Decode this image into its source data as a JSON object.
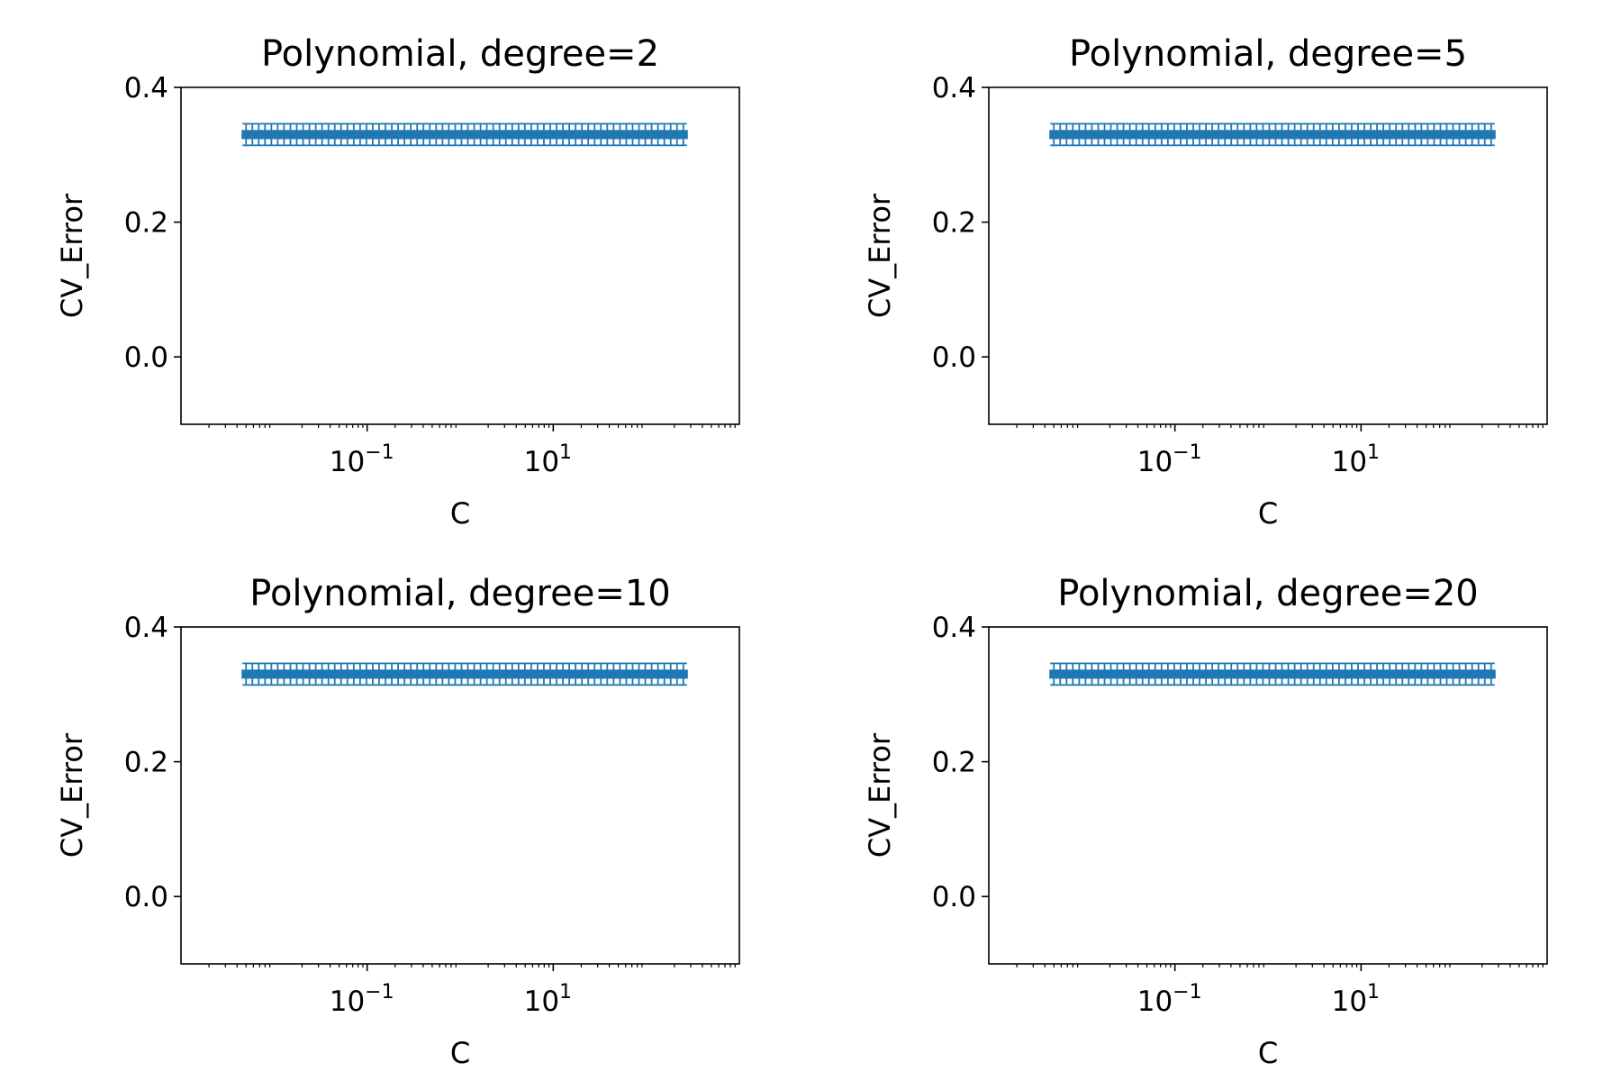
{
  "chart_data": [
    {
      "type": "errorbar",
      "title": "Polynomial, degree=2",
      "xlabel": "C",
      "ylabel": "CV_Error",
      "xscale": "log",
      "xlim": [
        0.001,
        1000
      ],
      "ylim": [
        -0.1,
        0.4
      ],
      "yticks": [
        "0.4",
        "0.2",
        "0.0"
      ],
      "xticks": [
        {
          "base": "10",
          "exp": "−1",
          "value": 0.1
        },
        {
          "base": "10",
          "exp": "1",
          "value": 10
        }
      ],
      "color": "#1f77b4",
      "x": [
        0.005,
        0.00585,
        0.00684,
        0.008,
        0.00936,
        0.01095,
        0.0128,
        0.01498,
        0.01752,
        0.0205,
        0.02397,
        0.02804,
        0.0328,
        0.03837,
        0.04489,
        0.0525,
        0.06142,
        0.07185,
        0.08404,
        0.09831,
        0.115,
        0.1345,
        0.1574,
        0.1841,
        0.2153,
        0.2519,
        0.2946,
        0.3447,
        0.4032,
        0.4716,
        0.5517,
        0.6454,
        0.755,
        0.8831,
        1.033,
        1.209,
        1.414,
        1.654,
        1.935,
        2.263,
        2.648,
        3.097,
        3.623,
        4.238,
        4.957,
        5.799,
        6.784,
        7.935,
        9.283,
        10.86,
        12.7,
        14.86,
        17.38,
        20.33,
        23.78,
        27.82,
        32.54,
        38.07,
        44.53,
        52.09,
        60.94,
        71.28,
        83.39,
        97.55,
        114.1,
        133.5,
        156.2,
        182.7,
        213.7,
        250.0
      ],
      "y": [
        0.33,
        0.33,
        0.33,
        0.33,
        0.33,
        0.33,
        0.33,
        0.33,
        0.33,
        0.33,
        0.33,
        0.33,
        0.33,
        0.33,
        0.33,
        0.33,
        0.33,
        0.33,
        0.33,
        0.33,
        0.33,
        0.33,
        0.33,
        0.33,
        0.33,
        0.33,
        0.33,
        0.33,
        0.33,
        0.33,
        0.33,
        0.33,
        0.33,
        0.33,
        0.33,
        0.33,
        0.33,
        0.33,
        0.33,
        0.33,
        0.33,
        0.33,
        0.33,
        0.33,
        0.33,
        0.33,
        0.33,
        0.33,
        0.33,
        0.33,
        0.33,
        0.33,
        0.33,
        0.33,
        0.33,
        0.33,
        0.33,
        0.33,
        0.33,
        0.33,
        0.33,
        0.33,
        0.33,
        0.33,
        0.33,
        0.33,
        0.33,
        0.33,
        0.33,
        0.33
      ],
      "yerr": [
        0.016,
        0.016,
        0.016,
        0.016,
        0.016,
        0.016,
        0.016,
        0.016,
        0.016,
        0.016,
        0.016,
        0.016,
        0.016,
        0.016,
        0.016,
        0.016,
        0.016,
        0.016,
        0.016,
        0.016,
        0.016,
        0.016,
        0.016,
        0.016,
        0.016,
        0.016,
        0.016,
        0.016,
        0.016,
        0.016,
        0.016,
        0.016,
        0.016,
        0.016,
        0.016,
        0.016,
        0.016,
        0.016,
        0.016,
        0.016,
        0.016,
        0.016,
        0.016,
        0.016,
        0.016,
        0.016,
        0.016,
        0.016,
        0.016,
        0.016,
        0.016,
        0.016,
        0.016,
        0.016,
        0.016,
        0.016,
        0.016,
        0.016,
        0.016,
        0.016,
        0.016,
        0.016,
        0.016,
        0.016,
        0.016,
        0.016,
        0.016,
        0.016,
        0.016,
        0.016
      ]
    },
    {
      "type": "errorbar",
      "title": "Polynomial, degree=5",
      "xlabel": "C",
      "ylabel": "CV_Error",
      "xscale": "log",
      "xlim": [
        0.001,
        1000
      ],
      "ylim": [
        -0.1,
        0.4
      ],
      "yticks": [
        "0.4",
        "0.2",
        "0.0"
      ],
      "xticks": [
        {
          "base": "10",
          "exp": "−1",
          "value": 0.1
        },
        {
          "base": "10",
          "exp": "1",
          "value": 10
        }
      ],
      "color": "#1f77b4",
      "x": [
        0.005,
        0.00585,
        0.00684,
        0.008,
        0.00936,
        0.01095,
        0.0128,
        0.01498,
        0.01752,
        0.0205,
        0.02397,
        0.02804,
        0.0328,
        0.03837,
        0.04489,
        0.0525,
        0.06142,
        0.07185,
        0.08404,
        0.09831,
        0.115,
        0.1345,
        0.1574,
        0.1841,
        0.2153,
        0.2519,
        0.2946,
        0.3447,
        0.4032,
        0.4716,
        0.5517,
        0.6454,
        0.755,
        0.8831,
        1.033,
        1.209,
        1.414,
        1.654,
        1.935,
        2.263,
        2.648,
        3.097,
        3.623,
        4.238,
        4.957,
        5.799,
        6.784,
        7.935,
        9.283,
        10.86,
        12.7,
        14.86,
        17.38,
        20.33,
        23.78,
        27.82,
        32.54,
        38.07,
        44.53,
        52.09,
        60.94,
        71.28,
        83.39,
        97.55,
        114.1,
        133.5,
        156.2,
        182.7,
        213.7,
        250.0
      ],
      "y": [
        0.33,
        0.33,
        0.33,
        0.33,
        0.33,
        0.33,
        0.33,
        0.33,
        0.33,
        0.33,
        0.33,
        0.33,
        0.33,
        0.33,
        0.33,
        0.33,
        0.33,
        0.33,
        0.33,
        0.33,
        0.33,
        0.33,
        0.33,
        0.33,
        0.33,
        0.33,
        0.33,
        0.33,
        0.33,
        0.33,
        0.33,
        0.33,
        0.33,
        0.33,
        0.33,
        0.33,
        0.33,
        0.33,
        0.33,
        0.33,
        0.33,
        0.33,
        0.33,
        0.33,
        0.33,
        0.33,
        0.33,
        0.33,
        0.33,
        0.33,
        0.33,
        0.33,
        0.33,
        0.33,
        0.33,
        0.33,
        0.33,
        0.33,
        0.33,
        0.33,
        0.33,
        0.33,
        0.33,
        0.33,
        0.33,
        0.33,
        0.33,
        0.33,
        0.33,
        0.33
      ],
      "yerr": [
        0.016,
        0.016,
        0.016,
        0.016,
        0.016,
        0.016,
        0.016,
        0.016,
        0.016,
        0.016,
        0.016,
        0.016,
        0.016,
        0.016,
        0.016,
        0.016,
        0.016,
        0.016,
        0.016,
        0.016,
        0.016,
        0.016,
        0.016,
        0.016,
        0.016,
        0.016,
        0.016,
        0.016,
        0.016,
        0.016,
        0.016,
        0.016,
        0.016,
        0.016,
        0.016,
        0.016,
        0.016,
        0.016,
        0.016,
        0.016,
        0.016,
        0.016,
        0.016,
        0.016,
        0.016,
        0.016,
        0.016,
        0.016,
        0.016,
        0.016,
        0.016,
        0.016,
        0.016,
        0.016,
        0.016,
        0.016,
        0.016,
        0.016,
        0.016,
        0.016,
        0.016,
        0.016,
        0.016,
        0.016,
        0.016,
        0.016,
        0.016,
        0.016,
        0.016,
        0.016
      ]
    },
    {
      "type": "errorbar",
      "title": "Polynomial, degree=10",
      "xlabel": "C",
      "ylabel": "CV_Error",
      "xscale": "log",
      "xlim": [
        0.001,
        1000
      ],
      "ylim": [
        -0.1,
        0.4
      ],
      "yticks": [
        "0.4",
        "0.2",
        "0.0"
      ],
      "xticks": [
        {
          "base": "10",
          "exp": "−1",
          "value": 0.1
        },
        {
          "base": "10",
          "exp": "1",
          "value": 10
        }
      ],
      "color": "#1f77b4",
      "x": [
        0.005,
        0.00585,
        0.00684,
        0.008,
        0.00936,
        0.01095,
        0.0128,
        0.01498,
        0.01752,
        0.0205,
        0.02397,
        0.02804,
        0.0328,
        0.03837,
        0.04489,
        0.0525,
        0.06142,
        0.07185,
        0.08404,
        0.09831,
        0.115,
        0.1345,
        0.1574,
        0.1841,
        0.2153,
        0.2519,
        0.2946,
        0.3447,
        0.4032,
        0.4716,
        0.5517,
        0.6454,
        0.755,
        0.8831,
        1.033,
        1.209,
        1.414,
        1.654,
        1.935,
        2.263,
        2.648,
        3.097,
        3.623,
        4.238,
        4.957,
        5.799,
        6.784,
        7.935,
        9.283,
        10.86,
        12.7,
        14.86,
        17.38,
        20.33,
        23.78,
        27.82,
        32.54,
        38.07,
        44.53,
        52.09,
        60.94,
        71.28,
        83.39,
        97.55,
        114.1,
        133.5,
        156.2,
        182.7,
        213.7,
        250.0
      ],
      "y": [
        0.33,
        0.33,
        0.33,
        0.33,
        0.33,
        0.33,
        0.33,
        0.33,
        0.33,
        0.33,
        0.33,
        0.33,
        0.33,
        0.33,
        0.33,
        0.33,
        0.33,
        0.33,
        0.33,
        0.33,
        0.33,
        0.33,
        0.33,
        0.33,
        0.33,
        0.33,
        0.33,
        0.33,
        0.33,
        0.33,
        0.33,
        0.33,
        0.33,
        0.33,
        0.33,
        0.33,
        0.33,
        0.33,
        0.33,
        0.33,
        0.33,
        0.33,
        0.33,
        0.33,
        0.33,
        0.33,
        0.33,
        0.33,
        0.33,
        0.33,
        0.33,
        0.33,
        0.33,
        0.33,
        0.33,
        0.33,
        0.33,
        0.33,
        0.33,
        0.33,
        0.33,
        0.33,
        0.33,
        0.33,
        0.33,
        0.33,
        0.33,
        0.33,
        0.33,
        0.33
      ],
      "yerr": [
        0.016,
        0.016,
        0.016,
        0.016,
        0.016,
        0.016,
        0.016,
        0.016,
        0.016,
        0.016,
        0.016,
        0.016,
        0.016,
        0.016,
        0.016,
        0.016,
        0.016,
        0.016,
        0.016,
        0.016,
        0.016,
        0.016,
        0.016,
        0.016,
        0.016,
        0.016,
        0.016,
        0.016,
        0.016,
        0.016,
        0.016,
        0.016,
        0.016,
        0.016,
        0.016,
        0.016,
        0.016,
        0.016,
        0.016,
        0.016,
        0.016,
        0.016,
        0.016,
        0.016,
        0.016,
        0.016,
        0.016,
        0.016,
        0.016,
        0.016,
        0.016,
        0.016,
        0.016,
        0.016,
        0.016,
        0.016,
        0.016,
        0.016,
        0.016,
        0.016,
        0.016,
        0.016,
        0.016,
        0.016,
        0.016,
        0.016,
        0.016,
        0.016,
        0.016,
        0.016
      ]
    },
    {
      "type": "errorbar",
      "title": "Polynomial, degree=20",
      "xlabel": "C",
      "ylabel": "CV_Error",
      "xscale": "log",
      "xlim": [
        0.001,
        1000
      ],
      "ylim": [
        -0.1,
        0.4
      ],
      "yticks": [
        "0.4",
        "0.2",
        "0.0"
      ],
      "xticks": [
        {
          "base": "10",
          "exp": "−1",
          "value": 0.1
        },
        {
          "base": "10",
          "exp": "1",
          "value": 10
        }
      ],
      "color": "#1f77b4",
      "x": [
        0.005,
        0.00585,
        0.00684,
        0.008,
        0.00936,
        0.01095,
        0.0128,
        0.01498,
        0.01752,
        0.0205,
        0.02397,
        0.02804,
        0.0328,
        0.03837,
        0.04489,
        0.0525,
        0.06142,
        0.07185,
        0.08404,
        0.09831,
        0.115,
        0.1345,
        0.1574,
        0.1841,
        0.2153,
        0.2519,
        0.2946,
        0.3447,
        0.4032,
        0.4716,
        0.5517,
        0.6454,
        0.755,
        0.8831,
        1.033,
        1.209,
        1.414,
        1.654,
        1.935,
        2.263,
        2.648,
        3.097,
        3.623,
        4.238,
        4.957,
        5.799,
        6.784,
        7.935,
        9.283,
        10.86,
        12.7,
        14.86,
        17.38,
        20.33,
        23.78,
        27.82,
        32.54,
        38.07,
        44.53,
        52.09,
        60.94,
        71.28,
        83.39,
        97.55,
        114.1,
        133.5,
        156.2,
        182.7,
        213.7,
        250.0
      ],
      "y": [
        0.33,
        0.33,
        0.33,
        0.33,
        0.33,
        0.33,
        0.33,
        0.33,
        0.33,
        0.33,
        0.33,
        0.33,
        0.33,
        0.33,
        0.33,
        0.33,
        0.33,
        0.33,
        0.33,
        0.33,
        0.33,
        0.33,
        0.33,
        0.33,
        0.33,
        0.33,
        0.33,
        0.33,
        0.33,
        0.33,
        0.33,
        0.33,
        0.33,
        0.33,
        0.33,
        0.33,
        0.33,
        0.33,
        0.33,
        0.33,
        0.33,
        0.33,
        0.33,
        0.33,
        0.33,
        0.33,
        0.33,
        0.33,
        0.33,
        0.33,
        0.33,
        0.33,
        0.33,
        0.33,
        0.33,
        0.33,
        0.33,
        0.33,
        0.33,
        0.33,
        0.33,
        0.33,
        0.33,
        0.33,
        0.33,
        0.33,
        0.33,
        0.33,
        0.33,
        0.33
      ],
      "yerr": [
        0.016,
        0.016,
        0.016,
        0.016,
        0.016,
        0.016,
        0.016,
        0.016,
        0.016,
        0.016,
        0.016,
        0.016,
        0.016,
        0.016,
        0.016,
        0.016,
        0.016,
        0.016,
        0.016,
        0.016,
        0.016,
        0.016,
        0.016,
        0.016,
        0.016,
        0.016,
        0.016,
        0.016,
        0.016,
        0.016,
        0.016,
        0.016,
        0.016,
        0.016,
        0.016,
        0.016,
        0.016,
        0.016,
        0.016,
        0.016,
        0.016,
        0.016,
        0.016,
        0.016,
        0.016,
        0.016,
        0.016,
        0.016,
        0.016,
        0.016,
        0.016,
        0.016,
        0.016,
        0.016,
        0.016,
        0.016,
        0.016,
        0.016,
        0.016,
        0.016,
        0.016,
        0.016,
        0.016,
        0.016,
        0.016,
        0.016,
        0.016,
        0.016,
        0.016,
        0.016
      ]
    }
  ]
}
